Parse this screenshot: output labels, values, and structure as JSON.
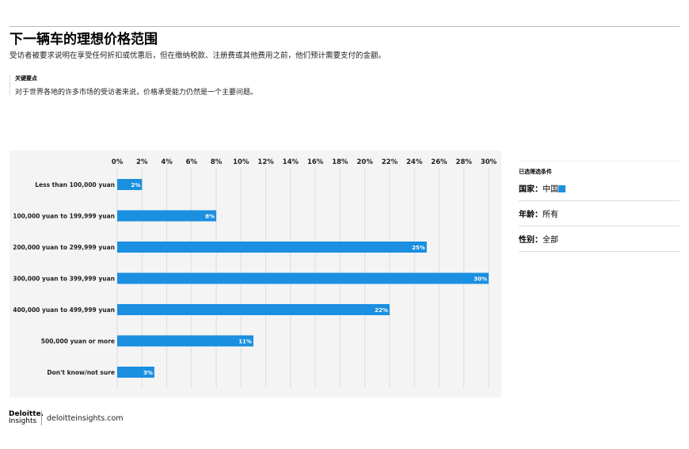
{
  "header": {
    "title": "下一辆车的理想价格范围",
    "subtitle": "受访者被要求说明在享受任何折扣或优惠后，但在缴纳税款、注册费或其他费用之前，他们预计需要支付的金额。"
  },
  "key_takeaway": {
    "heading": "关键要点",
    "text": "对于世界各地的许多市场的受访者来说，价格承受能力仍然是一个主要问题。"
  },
  "filters": {
    "heading": "已选筛选条件",
    "items": [
      {
        "label": "国家：",
        "value": "中国"
      },
      {
        "label": "年龄：",
        "value": "所有"
      },
      {
        "label": "性别：",
        "value": "全部"
      }
    ],
    "swatch_color": "#1b8fe0"
  },
  "footer": {
    "logo": "Deloitte. Insights",
    "url": "deloitteinsights.com"
  },
  "chart_data": {
    "type": "bar",
    "orientation": "horizontal",
    "categories": [
      "Less than 100,000 yuan",
      "100,000 yuan to 199,999 yuan",
      "200,000 yuan to 299,999 yuan",
      "300,000 yuan to 399,999 yuan",
      "400,000 yuan to 499,999 yuan",
      "500,000 yuan or more",
      "Don't know/not sure"
    ],
    "values": [
      2,
      8,
      25,
      30,
      22,
      11,
      3
    ],
    "data_labels": [
      "2%",
      "8%",
      "25%",
      "30%",
      "22%",
      "11%",
      "3%"
    ],
    "xlim": [
      0,
      30
    ],
    "ticks": [
      0,
      2,
      4,
      6,
      8,
      10,
      12,
      14,
      16,
      18,
      20,
      22,
      24,
      26,
      28,
      30
    ],
    "tick_labels": [
      "0%",
      "2%",
      "4%",
      "6%",
      "8%",
      "10%",
      "12%",
      "14%",
      "16%",
      "18%",
      "20%",
      "22%",
      "24%",
      "26%",
      "28%",
      "30%"
    ],
    "grid": true,
    "bar_color": "#1b8fe0"
  }
}
